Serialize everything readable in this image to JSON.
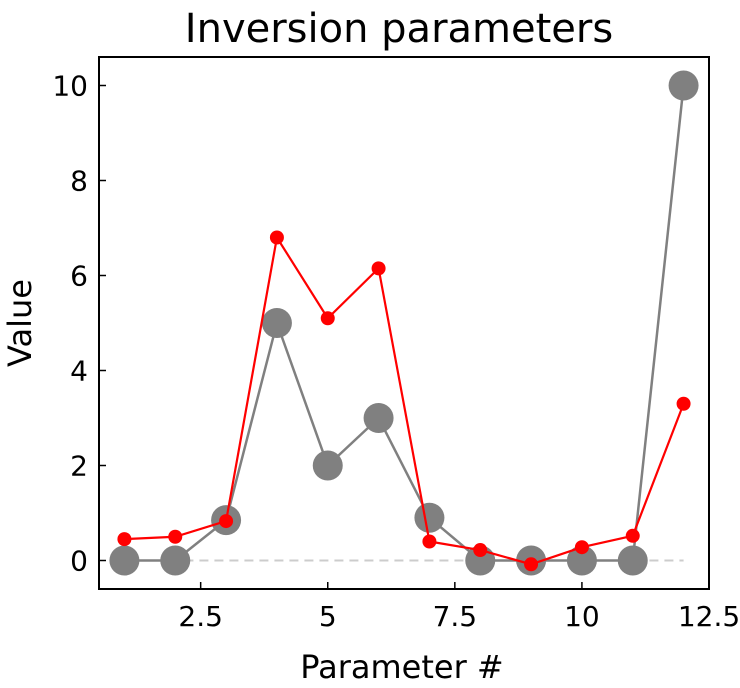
{
  "chart_data": {
    "type": "line",
    "title": "Inversion parameters",
    "xlabel": "Parameter #",
    "ylabel": "Value",
    "xlim": [
      0.5,
      12.5
    ],
    "ylim": [
      -0.6,
      10.6
    ],
    "xticks": [
      {
        "value": 2.5,
        "label": "2.5"
      },
      {
        "value": 5,
        "label": "5"
      },
      {
        "value": 7.5,
        "label": "7.5"
      },
      {
        "value": 10,
        "label": "10"
      },
      {
        "value": 12.5,
        "label": "12.5"
      }
    ],
    "yticks": [
      {
        "value": 0,
        "label": "0"
      },
      {
        "value": 2,
        "label": "2"
      },
      {
        "value": 4,
        "label": "4"
      },
      {
        "value": 6,
        "label": "6"
      },
      {
        "value": 8,
        "label": "8"
      },
      {
        "value": 10,
        "label": "10"
      }
    ],
    "grid": false,
    "legend": false,
    "reference_line": {
      "y": 0,
      "color": "#cccccc",
      "style": "dashed"
    },
    "x": [
      1,
      2,
      3,
      4,
      5,
      6,
      7,
      8,
      9,
      10,
      11,
      12
    ],
    "series": [
      {
        "color": "#808080",
        "marker_size": "large",
        "values": [
          0.0,
          0.0,
          0.85,
          5.0,
          2.0,
          3.0,
          0.9,
          0.0,
          0.0,
          0.0,
          0.0,
          10.0
        ]
      },
      {
        "color": "#ff0000",
        "marker_size": "small",
        "values": [
          0.45,
          0.5,
          0.83,
          6.8,
          5.1,
          6.15,
          0.4,
          0.22,
          -0.08,
          0.28,
          0.52,
          3.3
        ]
      }
    ]
  }
}
